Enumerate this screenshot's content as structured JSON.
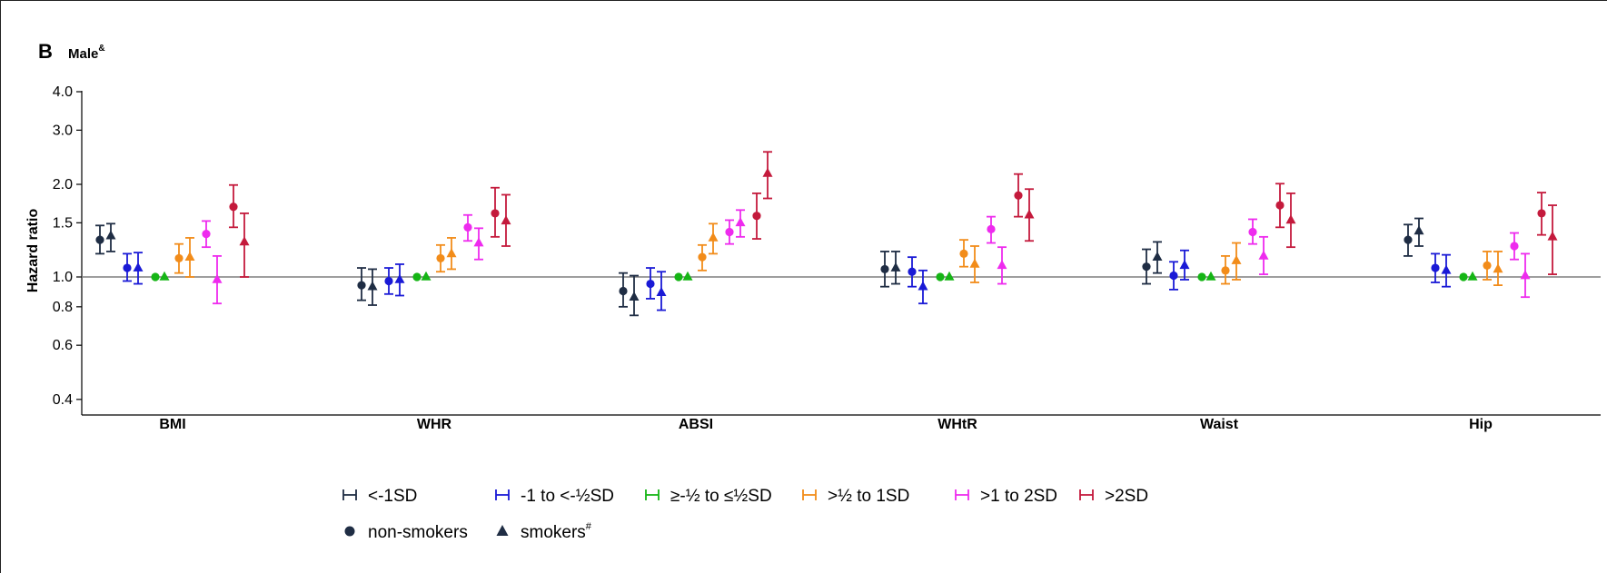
{
  "panel": {
    "letter": "B",
    "title": "Male",
    "title_sup": "&"
  },
  "colors": {
    "lt_minus1SD": "#1f2d44",
    "minus1_to_minushalf": "#1a1ad6",
    "within_half": "#15b515",
    "half_to_1": "#f28c1a",
    "1_to_2": "#ee2bee",
    "gt_2SD": "#c41a3c",
    "reference_line": "#7f7f7f"
  },
  "legend": {
    "groups": [
      {
        "key": "lt_minus1SD",
        "label": "<-1SD"
      },
      {
        "key": "minus1_to_minushalf",
        "label": "-1 to <-½SD"
      },
      {
        "key": "within_half",
        "label": "≥-½ to ≤½SD"
      },
      {
        "key": "half_to_1",
        "label": ">½ to 1SD"
      },
      {
        "key": "1_to_2",
        "label": ">1 to 2SD"
      },
      {
        "key": "gt_2SD",
        "label": ">2SD"
      }
    ],
    "markers": [
      {
        "shape": "circle",
        "label": "non-smokers",
        "sup": ""
      },
      {
        "shape": "triangle",
        "label": "smokers",
        "sup": "#"
      }
    ]
  },
  "chart_data": {
    "type": "scatter",
    "subtype": "forest-plot with error bars",
    "title": "Male",
    "ylabel": "Hazard ratio",
    "xlabel": "",
    "yscale": "log",
    "ylim": [
      0.36,
      4.0
    ],
    "yticks": [
      0.4,
      0.6,
      0.8,
      1.0,
      1.5,
      2.0,
      3.0,
      4.0
    ],
    "ytick_labels": [
      "0.4",
      "0.6",
      "0.8",
      "1.0",
      "1.5",
      "2.0",
      "3.0",
      "4.0"
    ],
    "reference_line": 1.0,
    "categories": [
      "BMI",
      "WHR",
      "ABSI",
      "WHtR",
      "Waist",
      "Hip"
    ],
    "groups": [
      "<-1SD",
      "-1 to <-½SD",
      "≥-½ to ≤½SD",
      ">½ to 1SD",
      ">1 to 2SD",
      ">2SD"
    ],
    "series": [
      {
        "name": "non-smokers",
        "marker": "circle",
        "values": [
          [
            [
              1.32,
              1.19,
              1.47
            ],
            [
              1.07,
              0.97,
              1.19
            ],
            [
              1.0,
              1.0,
              1.0
            ],
            [
              1.15,
              1.03,
              1.28
            ],
            [
              1.38,
              1.25,
              1.52
            ],
            [
              1.69,
              1.45,
              1.99
            ]
          ],
          [
            [
              0.94,
              0.84,
              1.07
            ],
            [
              0.97,
              0.88,
              1.07
            ],
            [
              1.0,
              1.0,
              1.0
            ],
            [
              1.15,
              1.04,
              1.27
            ],
            [
              1.45,
              1.31,
              1.59
            ],
            [
              1.61,
              1.35,
              1.95
            ]
          ],
          [
            [
              0.9,
              0.8,
              1.03
            ],
            [
              0.95,
              0.85,
              1.07
            ],
            [
              1.0,
              1.0,
              1.0
            ],
            [
              1.16,
              1.05,
              1.27
            ],
            [
              1.4,
              1.28,
              1.53
            ],
            [
              1.58,
              1.33,
              1.87
            ]
          ],
          [
            [
              1.06,
              0.93,
              1.21
            ],
            [
              1.04,
              0.93,
              1.16
            ],
            [
              1.0,
              1.0,
              1.0
            ],
            [
              1.19,
              1.08,
              1.32
            ],
            [
              1.43,
              1.29,
              1.57
            ],
            [
              1.84,
              1.57,
              2.16
            ]
          ],
          [
            [
              1.08,
              0.95,
              1.23
            ],
            [
              1.01,
              0.91,
              1.12
            ],
            [
              1.0,
              1.0,
              1.0
            ],
            [
              1.05,
              0.95,
              1.17
            ],
            [
              1.4,
              1.28,
              1.54
            ],
            [
              1.71,
              1.45,
              2.01
            ]
          ],
          [
            [
              1.32,
              1.17,
              1.48
            ],
            [
              1.07,
              0.96,
              1.19
            ],
            [
              1.0,
              1.0,
              1.0
            ],
            [
              1.09,
              0.98,
              1.21
            ],
            [
              1.26,
              1.14,
              1.39
            ],
            [
              1.61,
              1.37,
              1.88
            ]
          ]
        ]
      },
      {
        "name": "smokers",
        "marker": "triangle",
        "values": [
          [
            [
              1.36,
              1.21,
              1.49
            ],
            [
              1.07,
              0.95,
              1.2
            ],
            [
              1.0,
              1.0,
              1.0
            ],
            [
              1.16,
              1.0,
              1.34
            ],
            [
              0.98,
              0.82,
              1.17
            ],
            [
              1.3,
              1.0,
              1.61
            ]
          ],
          [
            [
              0.93,
              0.81,
              1.06
            ],
            [
              0.98,
              0.87,
              1.1
            ],
            [
              1.0,
              1.0,
              1.0
            ],
            [
              1.19,
              1.06,
              1.34
            ],
            [
              1.29,
              1.14,
              1.44
            ],
            [
              1.52,
              1.26,
              1.85
            ]
          ],
          [
            [
              0.86,
              0.75,
              1.01
            ],
            [
              0.89,
              0.78,
              1.04
            ],
            [
              1.0,
              1.0,
              1.0
            ],
            [
              1.34,
              1.19,
              1.49
            ],
            [
              1.5,
              1.35,
              1.65
            ],
            [
              2.17,
              1.8,
              2.55
            ]
          ],
          [
            [
              1.07,
              0.95,
              1.21
            ],
            [
              0.93,
              0.82,
              1.05
            ],
            [
              1.0,
              1.0,
              1.0
            ],
            [
              1.1,
              0.96,
              1.26
            ],
            [
              1.09,
              0.95,
              1.25
            ],
            [
              1.59,
              1.31,
              1.93
            ]
          ],
          [
            [
              1.16,
              1.03,
              1.3
            ],
            [
              1.09,
              0.98,
              1.22
            ],
            [
              1.0,
              1.0,
              1.0
            ],
            [
              1.13,
              0.98,
              1.29
            ],
            [
              1.17,
              1.02,
              1.35
            ],
            [
              1.53,
              1.25,
              1.87
            ]
          ],
          [
            [
              1.41,
              1.26,
              1.55
            ],
            [
              1.05,
              0.93,
              1.18
            ],
            [
              1.0,
              1.0,
              1.0
            ],
            [
              1.06,
              0.94,
              1.21
            ],
            [
              1.01,
              0.86,
              1.19
            ],
            [
              1.35,
              1.02,
              1.71
            ]
          ]
        ]
      }
    ],
    "value_format": "[estimate, lower CI, upper CI]",
    "legend_position": "bottom",
    "grid": false
  }
}
